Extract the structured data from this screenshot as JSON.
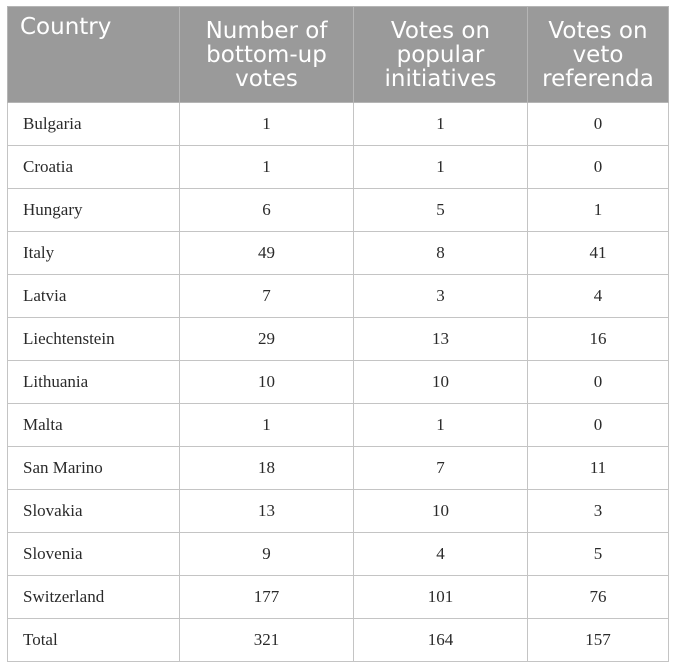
{
  "table": {
    "headers": [
      "Country",
      "Number of bottom-up votes",
      "Votes on popular initiatives",
      "Votes on veto referenda"
    ],
    "rows": [
      [
        "Bulgaria",
        "1",
        "1",
        "0"
      ],
      [
        "Croatia",
        "1",
        "1",
        "0"
      ],
      [
        "Hungary",
        "6",
        "5",
        "1"
      ],
      [
        "Italy",
        "49",
        "8",
        "41"
      ],
      [
        "Latvia",
        "7",
        "3",
        "4"
      ],
      [
        "Liechtenstein",
        "29",
        "13",
        "16"
      ],
      [
        "Lithuania",
        "10",
        "10",
        "0"
      ],
      [
        "Malta",
        "1",
        "1",
        "0"
      ],
      [
        "San Marino",
        "18",
        "7",
        "11"
      ],
      [
        "Slovakia",
        "13",
        "10",
        "3"
      ],
      [
        "Slovenia",
        "9",
        "4",
        "5"
      ],
      [
        "Switzerland",
        "177",
        "101",
        "76"
      ],
      [
        "Total",
        "321",
        "164",
        "157"
      ]
    ]
  },
  "colors": {
    "header_bg": "#9a9a9a",
    "header_text": "#ffffff",
    "grid": "#c4c4c4",
    "body_text": "#2a2a2a"
  }
}
